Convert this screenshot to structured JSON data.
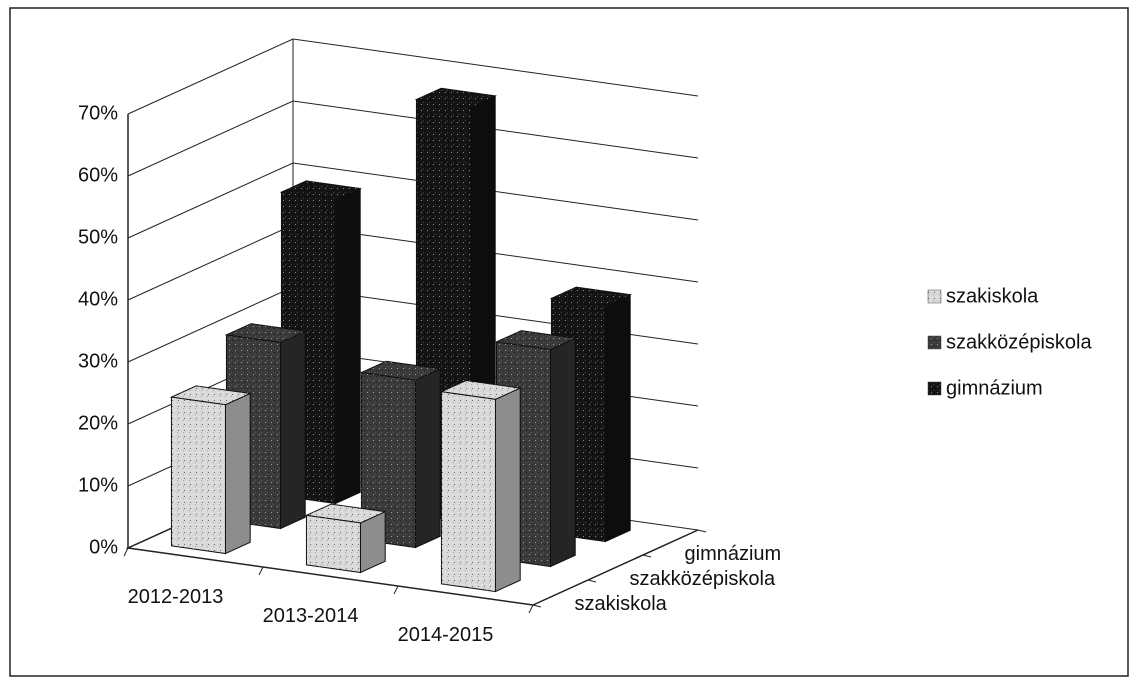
{
  "chart_data": {
    "type": "bar3d",
    "categories": [
      "2012-2013",
      "2013-2014",
      "2014-2015"
    ],
    "series": [
      {
        "name": "szakiskola",
        "color": "#d9d9d9",
        "values": [
          24,
          8,
          31
        ]
      },
      {
        "name": "szakközépiskola",
        "color": "#3a3a3a",
        "values": [
          30,
          27,
          35
        ]
      },
      {
        "name": "gimnázium",
        "color": "#141414",
        "values": [
          49,
          67,
          38
        ]
      }
    ],
    "ylim": [
      0,
      70
    ],
    "yticks": [
      {
        "value": 0,
        "label": "0%"
      },
      {
        "value": 10,
        "label": "10%"
      },
      {
        "value": 20,
        "label": "20%"
      },
      {
        "value": 30,
        "label": "30%"
      },
      {
        "value": 40,
        "label": "40%"
      },
      {
        "value": 50,
        "label": "50%"
      },
      {
        "value": 60,
        "label": "60%"
      },
      {
        "value": 70,
        "label": "70%"
      }
    ],
    "grid": true,
    "legend": "right"
  }
}
